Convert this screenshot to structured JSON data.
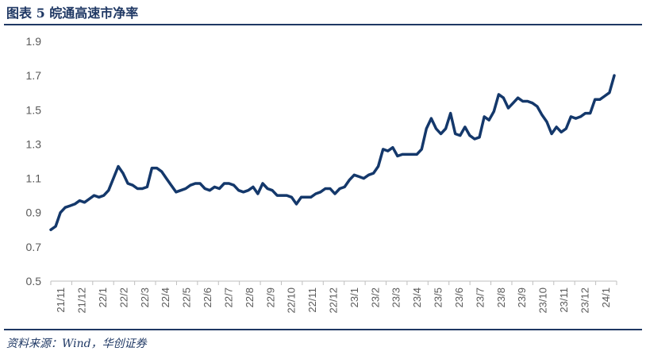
{
  "header": {
    "title": "图表 5  皖通高速市净率"
  },
  "footer": {
    "source": "资料来源：Wind，华创证券"
  },
  "chart_data": {
    "type": "line",
    "title": "",
    "xlabel": "",
    "ylabel": "",
    "ylim": [
      0.5,
      1.9
    ],
    "yticks": [
      "0.5",
      "0.7",
      "0.9",
      "1.1",
      "1.3",
      "1.5",
      "1.7",
      "1.9"
    ],
    "grid": false,
    "legend": "none",
    "line_color": "#14386b",
    "x_tick_labels": [
      "21/11",
      "21/12",
      "22/1",
      "22/2",
      "22/3",
      "22/4",
      "22/5",
      "22/6",
      "22/7",
      "22/8",
      "22/9",
      "22/10",
      "22/11",
      "22/12",
      "23/1",
      "23/2",
      "23/3",
      "23/4",
      "23/5",
      "23/6",
      "23/7",
      "23/8",
      "23/9",
      "23/10",
      "23/11",
      "23/12",
      "24/1"
    ],
    "series": [
      {
        "name": "",
        "values": [
          0.8,
          0.82,
          0.9,
          0.93,
          0.94,
          0.95,
          0.97,
          0.96,
          0.98,
          1.0,
          0.99,
          1.0,
          1.03,
          1.1,
          1.17,
          1.13,
          1.07,
          1.06,
          1.04,
          1.04,
          1.05,
          1.16,
          1.16,
          1.14,
          1.1,
          1.06,
          1.02,
          1.03,
          1.04,
          1.06,
          1.07,
          1.07,
          1.04,
          1.03,
          1.05,
          1.04,
          1.07,
          1.07,
          1.06,
          1.03,
          1.02,
          1.03,
          1.05,
          1.01,
          1.07,
          1.04,
          1.03,
          1.0,
          1.0,
          1.0,
          0.99,
          0.95,
          0.99,
          0.99,
          0.99,
          1.01,
          1.02,
          1.04,
          1.04,
          1.01,
          1.04,
          1.05,
          1.09,
          1.12,
          1.11,
          1.1,
          1.12,
          1.13,
          1.17,
          1.27,
          1.26,
          1.28,
          1.23,
          1.24,
          1.24,
          1.24,
          1.24,
          1.27,
          1.39,
          1.45,
          1.39,
          1.36,
          1.39,
          1.48,
          1.36,
          1.35,
          1.4,
          1.35,
          1.33,
          1.34,
          1.46,
          1.44,
          1.49,
          1.59,
          1.57,
          1.51,
          1.54,
          1.57,
          1.55,
          1.55,
          1.54,
          1.52,
          1.47,
          1.43,
          1.36,
          1.4,
          1.37,
          1.39,
          1.46,
          1.45,
          1.46,
          1.48,
          1.48,
          1.56,
          1.56,
          1.58,
          1.6,
          1.7
        ]
      }
    ]
  }
}
